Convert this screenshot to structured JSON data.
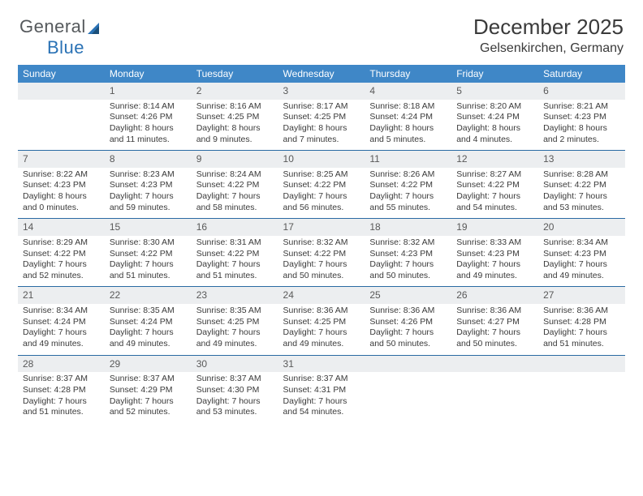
{
  "logo_general": "General",
  "logo_blue": "Blue",
  "month_title": "December 2025",
  "location": "Gelsenkirchen, Germany",
  "header_bg": "#3f87c7",
  "header_fg": "#ffffff",
  "daynum_bg": "#eceef0",
  "border_color": "#2a6aa3",
  "day_headers": [
    "Sunday",
    "Monday",
    "Tuesday",
    "Wednesday",
    "Thursday",
    "Friday",
    "Saturday"
  ],
  "weeks": [
    {
      "nums": [
        "",
        "1",
        "2",
        "3",
        "4",
        "5",
        "6"
      ],
      "cells": [
        {
          "sunrise": "",
          "sunset": "",
          "day1": "",
          "day2": ""
        },
        {
          "sunrise": "Sunrise: 8:14 AM",
          "sunset": "Sunset: 4:26 PM",
          "day1": "Daylight: 8 hours",
          "day2": "and 11 minutes."
        },
        {
          "sunrise": "Sunrise: 8:16 AM",
          "sunset": "Sunset: 4:25 PM",
          "day1": "Daylight: 8 hours",
          "day2": "and 9 minutes."
        },
        {
          "sunrise": "Sunrise: 8:17 AM",
          "sunset": "Sunset: 4:25 PM",
          "day1": "Daylight: 8 hours",
          "day2": "and 7 minutes."
        },
        {
          "sunrise": "Sunrise: 8:18 AM",
          "sunset": "Sunset: 4:24 PM",
          "day1": "Daylight: 8 hours",
          "day2": "and 5 minutes."
        },
        {
          "sunrise": "Sunrise: 8:20 AM",
          "sunset": "Sunset: 4:24 PM",
          "day1": "Daylight: 8 hours",
          "day2": "and 4 minutes."
        },
        {
          "sunrise": "Sunrise: 8:21 AM",
          "sunset": "Sunset: 4:23 PM",
          "day1": "Daylight: 8 hours",
          "day2": "and 2 minutes."
        }
      ]
    },
    {
      "nums": [
        "7",
        "8",
        "9",
        "10",
        "11",
        "12",
        "13"
      ],
      "cells": [
        {
          "sunrise": "Sunrise: 8:22 AM",
          "sunset": "Sunset: 4:23 PM",
          "day1": "Daylight: 8 hours",
          "day2": "and 0 minutes."
        },
        {
          "sunrise": "Sunrise: 8:23 AM",
          "sunset": "Sunset: 4:23 PM",
          "day1": "Daylight: 7 hours",
          "day2": "and 59 minutes."
        },
        {
          "sunrise": "Sunrise: 8:24 AM",
          "sunset": "Sunset: 4:22 PM",
          "day1": "Daylight: 7 hours",
          "day2": "and 58 minutes."
        },
        {
          "sunrise": "Sunrise: 8:25 AM",
          "sunset": "Sunset: 4:22 PM",
          "day1": "Daylight: 7 hours",
          "day2": "and 56 minutes."
        },
        {
          "sunrise": "Sunrise: 8:26 AM",
          "sunset": "Sunset: 4:22 PM",
          "day1": "Daylight: 7 hours",
          "day2": "and 55 minutes."
        },
        {
          "sunrise": "Sunrise: 8:27 AM",
          "sunset": "Sunset: 4:22 PM",
          "day1": "Daylight: 7 hours",
          "day2": "and 54 minutes."
        },
        {
          "sunrise": "Sunrise: 8:28 AM",
          "sunset": "Sunset: 4:22 PM",
          "day1": "Daylight: 7 hours",
          "day2": "and 53 minutes."
        }
      ]
    },
    {
      "nums": [
        "14",
        "15",
        "16",
        "17",
        "18",
        "19",
        "20"
      ],
      "cells": [
        {
          "sunrise": "Sunrise: 8:29 AM",
          "sunset": "Sunset: 4:22 PM",
          "day1": "Daylight: 7 hours",
          "day2": "and 52 minutes."
        },
        {
          "sunrise": "Sunrise: 8:30 AM",
          "sunset": "Sunset: 4:22 PM",
          "day1": "Daylight: 7 hours",
          "day2": "and 51 minutes."
        },
        {
          "sunrise": "Sunrise: 8:31 AM",
          "sunset": "Sunset: 4:22 PM",
          "day1": "Daylight: 7 hours",
          "day2": "and 51 minutes."
        },
        {
          "sunrise": "Sunrise: 8:32 AM",
          "sunset": "Sunset: 4:22 PM",
          "day1": "Daylight: 7 hours",
          "day2": "and 50 minutes."
        },
        {
          "sunrise": "Sunrise: 8:32 AM",
          "sunset": "Sunset: 4:23 PM",
          "day1": "Daylight: 7 hours",
          "day2": "and 50 minutes."
        },
        {
          "sunrise": "Sunrise: 8:33 AM",
          "sunset": "Sunset: 4:23 PM",
          "day1": "Daylight: 7 hours",
          "day2": "and 49 minutes."
        },
        {
          "sunrise": "Sunrise: 8:34 AM",
          "sunset": "Sunset: 4:23 PM",
          "day1": "Daylight: 7 hours",
          "day2": "and 49 minutes."
        }
      ]
    },
    {
      "nums": [
        "21",
        "22",
        "23",
        "24",
        "25",
        "26",
        "27"
      ],
      "cells": [
        {
          "sunrise": "Sunrise: 8:34 AM",
          "sunset": "Sunset: 4:24 PM",
          "day1": "Daylight: 7 hours",
          "day2": "and 49 minutes."
        },
        {
          "sunrise": "Sunrise: 8:35 AM",
          "sunset": "Sunset: 4:24 PM",
          "day1": "Daylight: 7 hours",
          "day2": "and 49 minutes."
        },
        {
          "sunrise": "Sunrise: 8:35 AM",
          "sunset": "Sunset: 4:25 PM",
          "day1": "Daylight: 7 hours",
          "day2": "and 49 minutes."
        },
        {
          "sunrise": "Sunrise: 8:36 AM",
          "sunset": "Sunset: 4:25 PM",
          "day1": "Daylight: 7 hours",
          "day2": "and 49 minutes."
        },
        {
          "sunrise": "Sunrise: 8:36 AM",
          "sunset": "Sunset: 4:26 PM",
          "day1": "Daylight: 7 hours",
          "day2": "and 50 minutes."
        },
        {
          "sunrise": "Sunrise: 8:36 AM",
          "sunset": "Sunset: 4:27 PM",
          "day1": "Daylight: 7 hours",
          "day2": "and 50 minutes."
        },
        {
          "sunrise": "Sunrise: 8:36 AM",
          "sunset": "Sunset: 4:28 PM",
          "day1": "Daylight: 7 hours",
          "day2": "and 51 minutes."
        }
      ]
    },
    {
      "nums": [
        "28",
        "29",
        "30",
        "31",
        "",
        "",
        ""
      ],
      "cells": [
        {
          "sunrise": "Sunrise: 8:37 AM",
          "sunset": "Sunset: 4:28 PM",
          "day1": "Daylight: 7 hours",
          "day2": "and 51 minutes."
        },
        {
          "sunrise": "Sunrise: 8:37 AM",
          "sunset": "Sunset: 4:29 PM",
          "day1": "Daylight: 7 hours",
          "day2": "and 52 minutes."
        },
        {
          "sunrise": "Sunrise: 8:37 AM",
          "sunset": "Sunset: 4:30 PM",
          "day1": "Daylight: 7 hours",
          "day2": "and 53 minutes."
        },
        {
          "sunrise": "Sunrise: 8:37 AM",
          "sunset": "Sunset: 4:31 PM",
          "day1": "Daylight: 7 hours",
          "day2": "and 54 minutes."
        },
        {
          "sunrise": "",
          "sunset": "",
          "day1": "",
          "day2": ""
        },
        {
          "sunrise": "",
          "sunset": "",
          "day1": "",
          "day2": ""
        },
        {
          "sunrise": "",
          "sunset": "",
          "day1": "",
          "day2": ""
        }
      ]
    }
  ]
}
